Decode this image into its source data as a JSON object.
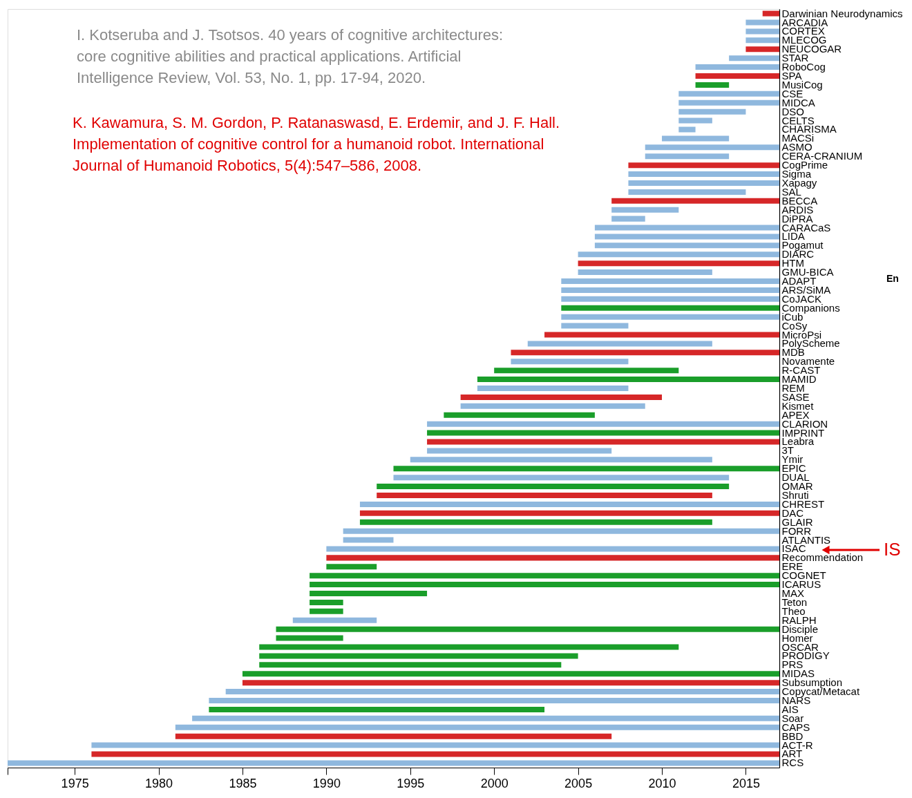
{
  "chart_data": {
    "type": "bar",
    "orientation": "horizontal",
    "categories": [
      "Darwinian Neurodynamics",
      "ARCADIA",
      "CORTEX",
      "MLECOG",
      "NEUCOGAR",
      "STAR",
      "RoboCog",
      "SPA",
      "MusiCog",
      "CSE",
      "MIDCA",
      "DSO",
      "CELTS",
      "CHARISMA",
      "MACSi",
      "ASMO",
      "CERA-CRANIUM",
      "CogPrime",
      "Sigma",
      "Xapagy",
      "SAL",
      "BECCA",
      "ARDIS",
      "DiPRA",
      "CARACaS",
      "LIDA",
      "Pogamut",
      "DIARC",
      "HTM",
      "GMU-BICA",
      "ADAPT",
      "ARS/SiMA",
      "CoJACK",
      "Companions",
      "iCub",
      "CoSy",
      "MicroPsi",
      "PolyScheme",
      "MDB",
      "Novamente",
      "R-CAST",
      "MAMID",
      "REM",
      "SASE",
      "Kismet",
      "APEX",
      "CLARION",
      "IMPRINT",
      "Leabra",
      "3T",
      "Ymir",
      "EPIC",
      "DUAL",
      "OMAR",
      "Shruti",
      "CHREST",
      "DAC",
      "GLAIR",
      "FORR",
      "ATLANTIS",
      "ISAC",
      "Recommendation",
      "ERE",
      "COGNET",
      "ICARUS",
      "MAX",
      "Teton",
      "Theo",
      "RALPH",
      "Disciple",
      "Homer",
      "OSCAR",
      "PRODIGY",
      "PRS",
      "MIDAS",
      "Subsumption",
      "Copycat/Metacat",
      "NARS",
      "AIS",
      "Soar",
      "CAPS",
      "BBD",
      "ACT-R",
      "ART",
      "RCS"
    ],
    "base": [
      2016,
      2015,
      2015,
      2015,
      2015,
      2014,
      2012,
      2012,
      2012,
      2011,
      2011,
      2011,
      2011,
      2011,
      2010,
      2009,
      2009,
      2008,
      2008,
      2008,
      2008,
      2007,
      2007,
      2007,
      2006,
      2006,
      2006,
      2005,
      2005,
      2005,
      2004,
      2004,
      2004,
      2004,
      2004,
      2004,
      2003,
      2002,
      2001,
      2001,
      2000,
      1999,
      1999,
      1998,
      1998,
      1997,
      1996,
      1996,
      1996,
      1996,
      1995,
      1994,
      1994,
      1993,
      1993,
      1992,
      1992,
      1992,
      1991,
      1991,
      1990,
      1990,
      1990,
      1989,
      1989,
      1989,
      1989,
      1989,
      1988,
      1987,
      1987,
      1986,
      1986,
      1986,
      1985,
      1985,
      1984,
      1983,
      1983,
      1982,
      1981,
      1981,
      1976,
      1976,
      1971
    ],
    "values": [
      1,
      2,
      2,
      2,
      2,
      3,
      5,
      5,
      2,
      6,
      6,
      4,
      2,
      1,
      4,
      8,
      5,
      9,
      9,
      9,
      7,
      10,
      4,
      2,
      11,
      11,
      11,
      12,
      12,
      8,
      13,
      13,
      13,
      13,
      13,
      4,
      14,
      11,
      16,
      7,
      11,
      18,
      9,
      12,
      11,
      9,
      21,
      21,
      21,
      11,
      18,
      23,
      20,
      21,
      20,
      25,
      25,
      21,
      26,
      3,
      27,
      27,
      3,
      28,
      28,
      7,
      2,
      2,
      5,
      30,
      4,
      25,
      19,
      18,
      32,
      32,
      33,
      34,
      20,
      35,
      36,
      26,
      41,
      41,
      46
    ],
    "colors": [
      "#d62728",
      "#8fb8de",
      "#8fb8de",
      "#8fb8de",
      "#d62728",
      "#8fb8de",
      "#8fb8de",
      "#d62728",
      "#1a9e2a",
      "#8fb8de",
      "#8fb8de",
      "#8fb8de",
      "#8fb8de",
      "#8fb8de",
      "#8fb8de",
      "#8fb8de",
      "#8fb8de",
      "#d62728",
      "#8fb8de",
      "#8fb8de",
      "#8fb8de",
      "#d62728",
      "#8fb8de",
      "#8fb8de",
      "#8fb8de",
      "#8fb8de",
      "#8fb8de",
      "#8fb8de",
      "#d62728",
      "#8fb8de",
      "#8fb8de",
      "#8fb8de",
      "#8fb8de",
      "#1a9e2a",
      "#8fb8de",
      "#8fb8de",
      "#d62728",
      "#8fb8de",
      "#d62728",
      "#8fb8de",
      "#1a9e2a",
      "#1a9e2a",
      "#8fb8de",
      "#d62728",
      "#8fb8de",
      "#1a9e2a",
      "#8fb8de",
      "#1a9e2a",
      "#d62728",
      "#8fb8de",
      "#8fb8de",
      "#1a9e2a",
      "#8fb8de",
      "#1a9e2a",
      "#d62728",
      "#8fb8de",
      "#d62728",
      "#1a9e2a",
      "#8fb8de",
      "#8fb8de",
      "#8fb8de",
      "#d62728",
      "#1a9e2a",
      "#1a9e2a",
      "#1a9e2a",
      "#1a9e2a",
      "#1a9e2a",
      "#1a9e2a",
      "#8fb8de",
      "#1a9e2a",
      "#1a9e2a",
      "#1a9e2a",
      "#1a9e2a",
      "#1a9e2a",
      "#1a9e2a",
      "#d62728",
      "#8fb8de",
      "#8fb8de",
      "#1a9e2a",
      "#8fb8de",
      "#8fb8de",
      "#d62728",
      "#8fb8de",
      "#d62728",
      "#8fb8de"
    ],
    "xlim": [
      1971,
      2017
    ],
    "xticks": [
      {
        "value": 1971,
        "label": null
      },
      1975,
      1980,
      1985,
      1990,
      1995,
      2000,
      2005,
      2010,
      2015
    ],
    "grid": false,
    "annotations": [
      "I. Kotseruba and J. Tsotsos. 40 years of cognitive architectures:\ncore cognitive abilities and practical applications. Artificial\nIntelligence Review, Vol. 53, No. 1, pp. 17-94, 2020.",
      "K. Kawamura, S. M. Gordon, P. Ratanaswasd, E. Erdemir, and J. F. Hall.\nImplementation of cognitive control for a humanoid robot. International\nJournal of Humanoid Robotics, 5(4):547–586, 2008.",
      "En",
      "IS"
    ]
  }
}
